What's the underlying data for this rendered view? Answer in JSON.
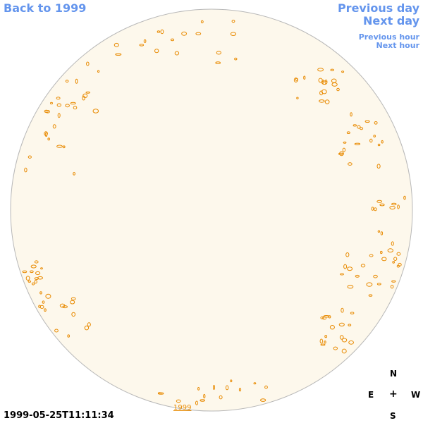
{
  "nav": {
    "back_label": "Back to 1999",
    "prev_day_label": "Previous day",
    "next_day_label": "Next day",
    "prev_hour_label": "Previous hour",
    "next_hour_label": "Next hour"
  },
  "timestamp": "1999-05-25T11:11:34",
  "year_link": "1999",
  "compass": {
    "n": "N",
    "e": "E",
    "plus": "+",
    "w": "W",
    "s": "S"
  },
  "colors": {
    "link": "#6495ed",
    "disk_fill": "#fdf8ec",
    "disk_stroke": "#b8b8b8",
    "contour": "#e88a00"
  },
  "icons": {
    "disk": "solar-disk",
    "compass": "compass-rose"
  }
}
